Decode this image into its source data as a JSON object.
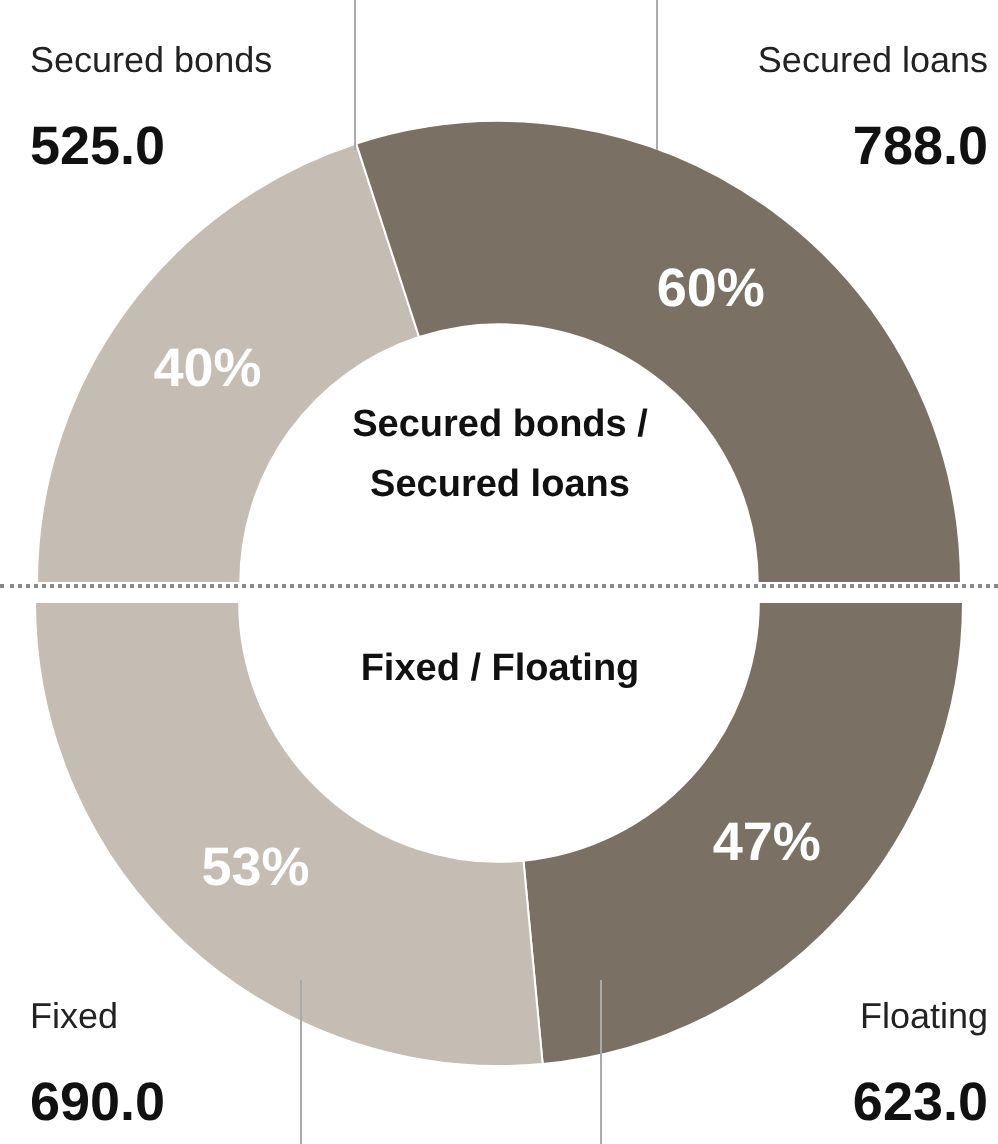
{
  "chart_data": [
    {
      "type": "donut",
      "title": "Secured bonds / Secured loans",
      "categories": [
        "Secured bonds",
        "Secured loans"
      ],
      "values": [
        40,
        60
      ],
      "colors": [
        "#c5bcb4",
        "#7b7064"
      ],
      "value_labels": [
        "40%",
        "60%"
      ],
      "annotations": [
        "525.0",
        "788.0"
      ]
    },
    {
      "type": "donut",
      "title": "Fixed / Floating",
      "categories": [
        "Fixed",
        "Floating"
      ],
      "values": [
        53,
        47
      ],
      "colors": [
        "#c5bcb4",
        "#7b7064"
      ],
      "value_labels": [
        "53%",
        "47%"
      ],
      "annotations": [
        "690.0",
        "623.0"
      ]
    }
  ]
}
